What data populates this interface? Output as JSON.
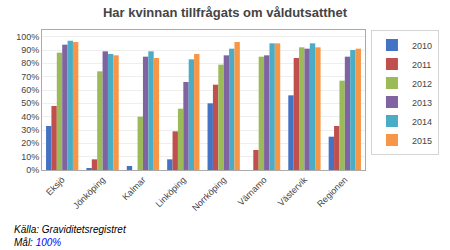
{
  "chart_data": {
    "type": "bar",
    "title": "Har kvinnan tillfrågats om våldutsatthet",
    "categories": [
      "Eksjö",
      "Jönköping",
      "Kalmar",
      "Linköping",
      "Norrköping",
      "Värnamo",
      "Västervik",
      "Regionen"
    ],
    "series": [
      {
        "name": "2010",
        "color": "#4472C4",
        "values": [
          33,
          1,
          3,
          8,
          50,
          0,
          56,
          25
        ]
      },
      {
        "name": "2011",
        "color": "#C0504D",
        "values": [
          48,
          8,
          0,
          29,
          64,
          15,
          84,
          33
        ]
      },
      {
        "name": "2012",
        "color": "#9BBB59",
        "values": [
          88,
          74,
          40,
          46,
          79,
          85,
          92,
          67
        ]
      },
      {
        "name": "2013",
        "color": "#8064A2",
        "values": [
          94,
          89,
          85,
          66,
          86,
          86,
          91,
          85
        ]
      },
      {
        "name": "2014",
        "color": "#4BACC6",
        "values": [
          97,
          87,
          89,
          83,
          91,
          95,
          95,
          90
        ]
      },
      {
        "name": "2015",
        "color": "#F79646",
        "values": [
          96,
          86,
          84,
          87,
          96,
          95,
          92,
          91
        ]
      }
    ],
    "ylim": [
      0,
      105
    ],
    "yticks": [
      {
        "value": 0,
        "label": "0%"
      },
      {
        "value": 10,
        "label": "10%"
      },
      {
        "value": 20,
        "label": "20%"
      },
      {
        "value": 30,
        "label": "30%"
      },
      {
        "value": 40,
        "label": "40%"
      },
      {
        "value": 50,
        "label": "50%"
      },
      {
        "value": 60,
        "label": "60%"
      },
      {
        "value": 70,
        "label": "70%"
      },
      {
        "value": 80,
        "label": "80%"
      },
      {
        "value": 90,
        "label": "90%"
      },
      {
        "value": 100,
        "label": "100%"
      }
    ],
    "grid": true,
    "legend": "upper right",
    "annotations": [
      {
        "text": "Källa: Graviditetsregistret"
      },
      {
        "text": "Mål: "
      },
      {
        "text": "100%",
        "color": "#0000FF"
      }
    ]
  }
}
